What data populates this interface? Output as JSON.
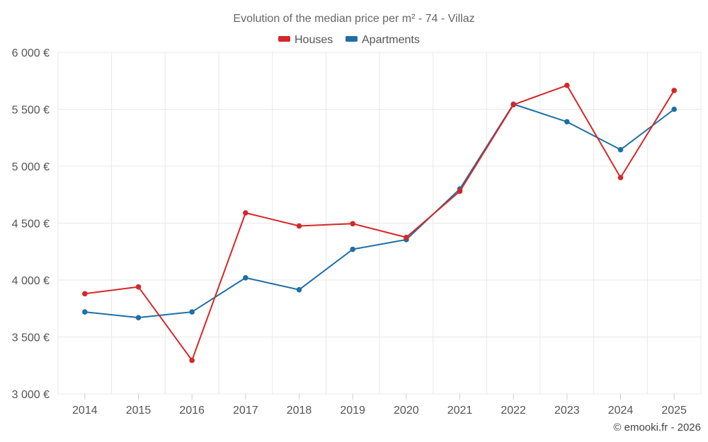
{
  "chart_data": {
    "type": "line",
    "title": "Evolution of the median price per m² - 74 - Villaz",
    "categories": [
      "2014",
      "2015",
      "2016",
      "2017",
      "2018",
      "2019",
      "2020",
      "2021",
      "2022",
      "2023",
      "2024",
      "2025"
    ],
    "series": [
      {
        "name": "Houses",
        "color": "#d62728",
        "values": [
          3880,
          3940,
          3295,
          4590,
          4475,
          4495,
          4375,
          4780,
          5540,
          5710,
          4900,
          5665
        ]
      },
      {
        "name": "Apartments",
        "color": "#1f6fa3",
        "values": [
          3720,
          3670,
          3720,
          4020,
          3915,
          4270,
          4355,
          4800,
          5545,
          5390,
          5145,
          5500
        ]
      }
    ],
    "y_ticks": [
      3000,
      3500,
      4000,
      4500,
      5000,
      5500,
      6000
    ],
    "y_tick_labels": [
      "3 000 €",
      "3 500 €",
      "4 000 €",
      "4 500 €",
      "5 000 €",
      "5 500 €",
      "6 000 €"
    ],
    "ylim": [
      3000,
      6000
    ],
    "xlabel": "",
    "ylabel": "",
    "grid": true,
    "legend_position": "top-center"
  },
  "credit": "© emooki.fr - 2026"
}
